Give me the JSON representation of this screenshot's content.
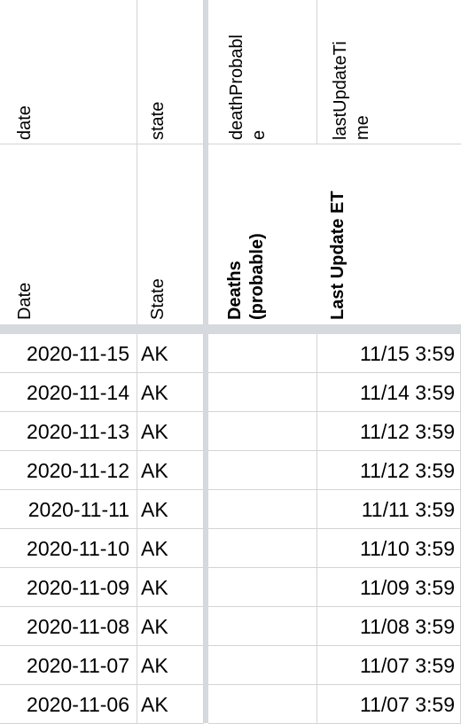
{
  "header_row1": {
    "date": "date",
    "state": "state",
    "deathProbable_line1": "deathProbabl",
    "deathProbable_line2": "e",
    "lastUpdate_line1": "lastUpdateTi",
    "lastUpdate_line2": "me"
  },
  "header_row2": {
    "date": "Date",
    "state": "State",
    "deaths_line1": "Deaths",
    "deaths_line2": "(probable)",
    "last_update": "Last Update ET"
  },
  "rows": [
    {
      "date": "2020-11-15",
      "state": "AK",
      "deaths": "",
      "updated": "11/15 3:59"
    },
    {
      "date": "2020-11-14",
      "state": "AK",
      "deaths": "",
      "updated": "11/14 3:59"
    },
    {
      "date": "2020-11-13",
      "state": "AK",
      "deaths": "",
      "updated": "11/12 3:59"
    },
    {
      "date": "2020-11-12",
      "state": "AK",
      "deaths": "",
      "updated": "11/12 3:59"
    },
    {
      "date": "2020-11-11",
      "state": "AK",
      "deaths": "",
      "updated": "11/11 3:59"
    },
    {
      "date": "2020-11-10",
      "state": "AK",
      "deaths": "",
      "updated": "11/10 3:59"
    },
    {
      "date": "2020-11-09",
      "state": "AK",
      "deaths": "",
      "updated": "11/09 3:59"
    },
    {
      "date": "2020-11-08",
      "state": "AK",
      "deaths": "",
      "updated": "11/08 3:59"
    },
    {
      "date": "2020-11-07",
      "state": "AK",
      "deaths": "",
      "updated": "11/07 3:59"
    },
    {
      "date": "2020-11-06",
      "state": "AK",
      "deaths": "",
      "updated": "11/07 3:59"
    }
  ]
}
